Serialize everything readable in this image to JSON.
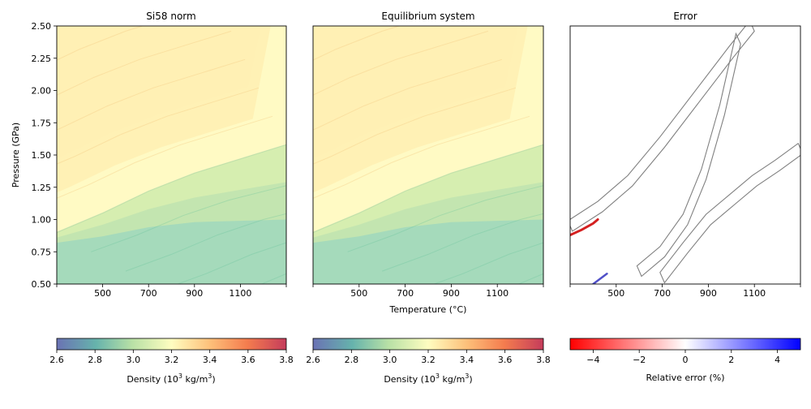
{
  "chart_data": [
    {
      "type": "heatmap",
      "title": "Si58 norm",
      "xlabel": "",
      "ylabel": "Pressure (GPa)",
      "x_ticks": [
        500,
        700,
        900,
        1100
      ],
      "y_ticks": [
        0.5,
        0.75,
        1.0,
        1.25,
        1.5,
        1.75,
        2.0,
        2.25,
        2.5
      ],
      "y_tick_labels": [
        "0.50",
        "0.75",
        "1.00",
        "1.25",
        "1.50",
        "1.75",
        "2.00",
        "2.25",
        "2.50"
      ],
      "xlim": [
        300,
        1300
      ],
      "ylim": [
        0.5,
        2.5
      ],
      "boundary_points": [
        [
          300,
          0.9
        ],
        [
          500,
          1.05
        ],
        [
          700,
          1.22
        ],
        [
          900,
          1.36
        ],
        [
          1100,
          1.47
        ],
        [
          1300,
          1.58
        ]
      ],
      "low_density_region": "below boundary (2.8–3.1)",
      "high_density_region": "top-left (up to ~3.45)"
    },
    {
      "type": "heatmap",
      "title": "Equilibrium system",
      "xlabel": "Temperature (°C)",
      "ylabel": "",
      "x_ticks": [
        500,
        700,
        900,
        1100
      ],
      "xlim": [
        300,
        1300
      ],
      "ylim": [
        0.5,
        2.5
      ],
      "boundary_points": [
        [
          300,
          0.9
        ],
        [
          500,
          1.05
        ],
        [
          700,
          1.22
        ],
        [
          900,
          1.36
        ],
        [
          1100,
          1.47
        ],
        [
          1300,
          1.58
        ]
      ]
    },
    {
      "type": "heatmap",
      "title": "Error",
      "xlabel": "",
      "ylabel": "",
      "x_ticks": [
        500,
        700,
        900,
        1100
      ],
      "xlim": [
        300,
        1300
      ],
      "ylim": [
        0.5,
        2.5
      ],
      "contour_bands": [
        {
          "name": "",
          "points": [
            [
              300,
              0.95
            ],
            [
              430,
              1.1
            ],
            [
              560,
              1.3
            ],
            [
              700,
              1.6
            ],
            [
              850,
              1.95
            ],
            [
              1000,
              2.3
            ],
            [
              1090,
              2.5
            ]
          ]
        },
        {
          "name": "",
          "points": [
            [
              600,
              0.6
            ],
            [
              700,
              0.75
            ],
            [
              800,
              1.0
            ],
            [
              880,
              1.35
            ],
            [
              960,
              1.85
            ],
            [
              1030,
              2.4
            ]
          ]
        },
        {
          "name": "",
          "points": [
            [
              700,
              0.55
            ],
            [
              800,
              0.78
            ],
            [
              900,
              1.0
            ],
            [
              1000,
              1.15
            ],
            [
              1100,
              1.3
            ],
            [
              1200,
              1.42
            ],
            [
              1300,
              1.55
            ]
          ]
        }
      ],
      "red_edge": {
        "points": [
          [
            300,
            0.88
          ],
          [
            350,
            0.92
          ],
          [
            400,
            0.97
          ],
          [
            420,
            1.0
          ]
        ],
        "relative_error": -4
      },
      "blue_edge": {
        "points": [
          [
            400,
            0.5
          ],
          [
            430,
            0.54
          ],
          [
            460,
            0.58
          ]
        ],
        "relative_error": 4
      }
    }
  ],
  "colorbars": [
    {
      "label": "Density (10",
      "label_sup": "3",
      "label_mid": " kg/m",
      "label_sup2": "3",
      "label_end": ")",
      "range": [
        2.6,
        3.8
      ],
      "ticks": [
        "2.6",
        "2.8",
        "3.0",
        "3.2",
        "3.4",
        "3.6",
        "3.8"
      ],
      "colormap": [
        "#6a72b4",
        "#66b3ac",
        "#b9e1a6",
        "#fefdc0",
        "#fdbf79",
        "#f47c4e",
        "#c53c5b"
      ]
    },
    {
      "label": "Density (10",
      "label_sup": "3",
      "label_mid": " kg/m",
      "label_sup2": "3",
      "label_end": ")",
      "range": [
        2.6,
        3.8
      ],
      "ticks": [
        "2.6",
        "2.8",
        "3.0",
        "3.2",
        "3.4",
        "3.6",
        "3.8"
      ],
      "colormap": [
        "#6a72b4",
        "#66b3ac",
        "#b9e1a6",
        "#fefdc0",
        "#fdbf79",
        "#f47c4e",
        "#c53c5b"
      ]
    },
    {
      "label": "Relative error (%)",
      "range": [
        -5,
        5
      ],
      "ticks": [
        "−4",
        "−2",
        "0",
        "2",
        "4"
      ],
      "tick_values": [
        -4,
        -2,
        0,
        2,
        4
      ],
      "colormap": [
        "#ff0000",
        "#ffffff",
        "#0000ff"
      ]
    }
  ],
  "colors": {
    "high": "#fdd090",
    "mid_high": "#fde6a8",
    "mid": "#fffac4",
    "low_mid": "#d6eeb0",
    "low": "#a0d8bd",
    "lowest": "#8ccfb8",
    "contour_gray": "#808080"
  }
}
